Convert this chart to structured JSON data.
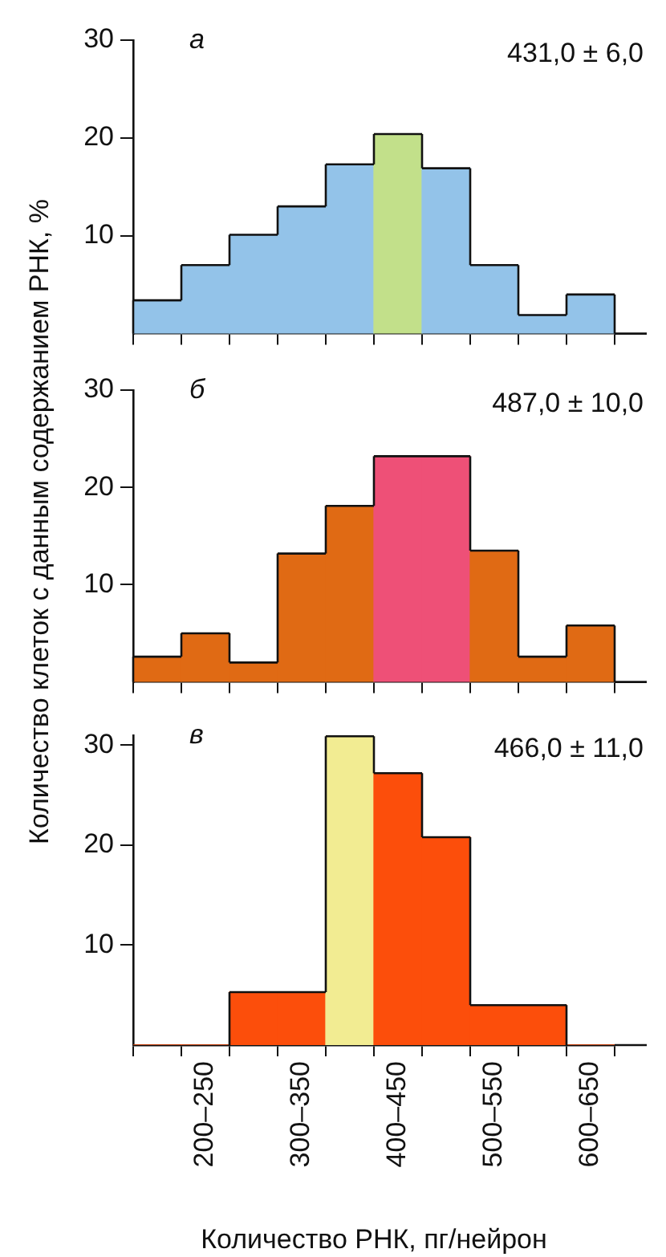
{
  "chart_data": [
    {
      "type": "bar",
      "title": "а",
      "annotations": [
        "431,0 ± 6,0"
      ],
      "categories": [
        null,
        null,
        null,
        null,
        null,
        null,
        null,
        null,
        null,
        null
      ],
      "values": [
        3.4,
        7,
        10.1,
        13,
        17.3,
        20.4,
        16.9,
        7,
        1.9,
        4
      ],
      "colors": [
        "#93c3e9",
        "#93c3e9",
        "#93c3e9",
        "#93c3e9",
        "#93c3e9",
        "#c2e08a",
        "#93c3e9",
        "#93c3e9",
        "#93c3e9",
        "#93c3e9"
      ],
      "ylim": [
        0,
        30
      ],
      "yticks": [
        10,
        20,
        30
      ],
      "tick_labels": "y",
      "grid": false,
      "legend": false
    },
    {
      "type": "bar",
      "title": "б",
      "ylabel": "Количество клеток с данным содержанием РНК, %",
      "annotations": [
        "487,0 ± 10,0"
      ],
      "categories": [
        null,
        null,
        null,
        null,
        null,
        null,
        null,
        null,
        null,
        null
      ],
      "values": [
        2.6,
        5,
        2,
        13.2,
        18.1,
        23.2,
        23.2,
        13.5,
        2.6,
        5.8
      ],
      "colors": [
        "#e06a14",
        "#e06a14",
        "#e06a14",
        "#e06a14",
        "#e06a14",
        "#ee5077",
        "#ee5077",
        "#e06a14",
        "#e06a14",
        "#e06a14"
      ],
      "ylim": [
        0,
        30
      ],
      "yticks": [
        10,
        20,
        30
      ],
      "tick_labels": "y",
      "grid": false,
      "legend": false
    },
    {
      "type": "bar",
      "title": "в",
      "xlabel": "Количество РНК, пг/нейрон",
      "annotations": [
        "466,0 ± 11,0"
      ],
      "categories": [
        null,
        "200–250",
        null,
        "300–350",
        null,
        "400–450",
        null,
        "500–550",
        null,
        "600–650"
      ],
      "values": [
        0,
        0,
        5.3,
        5.3,
        30.9,
        27.2,
        20.8,
        4,
        4,
        0
      ],
      "colors": [
        "#fc4e0b",
        "#fc4e0b",
        "#fc4e0b",
        "#fc4e0b",
        "#f2ec92",
        "#fc4e0b",
        "#fc4e0b",
        "#fc4e0b",
        "#fc4e0b",
        "#fc4e0b"
      ],
      "ylim": [
        0,
        31
      ],
      "yticks": [
        10,
        20,
        30
      ],
      "grid": false,
      "legend": false
    }
  ]
}
